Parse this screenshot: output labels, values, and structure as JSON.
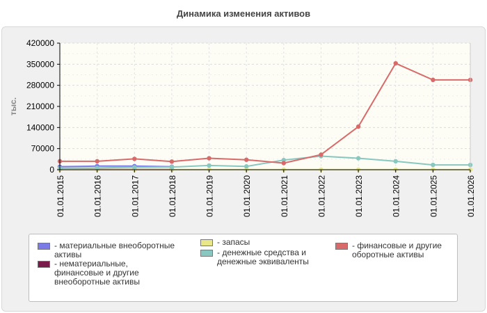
{
  "chart_data": {
    "type": "line",
    "title": "Динамика изменения активов",
    "ylabel": "тыс.",
    "xlabel": "",
    "ylim": [
      0,
      420000
    ],
    "y_ticks": [
      "0",
      "70000",
      "140000",
      "210000",
      "280000",
      "350000",
      "420000"
    ],
    "categories": [
      "01.01.2015",
      "01.01.2016",
      "01.01.2017",
      "01.01.2018",
      "01.01.2019",
      "01.01.2020",
      "01.01.2021",
      "01.01.2022",
      "01.01.2023",
      "01.01.2024",
      "01.01.2025",
      "01.01.2026"
    ],
    "grid": true,
    "legend_position": "bottom",
    "series": [
      {
        "name": "- материальные внеоборотные активы",
        "color": "#7b7be8",
        "values": [
          10000,
          12000,
          12000,
          10000,
          null,
          null,
          null,
          null,
          null,
          null,
          null,
          null
        ]
      },
      {
        "name": "- нематериальные, финансовые и другие внеоборотные активы",
        "color": "#7a1a4a",
        "values": [
          1000,
          1000,
          1000,
          1000,
          null,
          null,
          null,
          null,
          null,
          null,
          null,
          null
        ]
      },
      {
        "name": "- запасы",
        "color": "#e8e88a",
        "values": [
          500,
          500,
          500,
          500,
          500,
          500,
          500,
          500,
          500,
          500,
          500,
          500
        ]
      },
      {
        "name": "- денежные средства и денежные эквиваленты",
        "color": "#88c8c0",
        "values": [
          5000,
          6000,
          8000,
          9000,
          14000,
          11000,
          32000,
          45000,
          38000,
          28000,
          16000,
          16000
        ]
      },
      {
        "name": "- финансовые и другие оборотные активы",
        "color": "#d96a6a",
        "values": [
          28000,
          28000,
          36000,
          27000,
          38000,
          33000,
          22000,
          50000,
          143000,
          353000,
          298000,
          298000
        ]
      }
    ]
  },
  "legend": {
    "items": [
      {
        "label": "- материальные внеоборотные активы",
        "color": "#7b7be8"
      },
      {
        "label": "- нематериальные, финансовые и другие внеоборотные активы",
        "color": "#7a1a4a"
      },
      {
        "label": "- запасы",
        "color": "#e8e88a"
      },
      {
        "label": "- денежные средства и денежные эквиваленты",
        "color": "#88c8c0"
      },
      {
        "label": "- финансовые и другие оборотные активы",
        "color": "#d96a6a"
      }
    ]
  }
}
